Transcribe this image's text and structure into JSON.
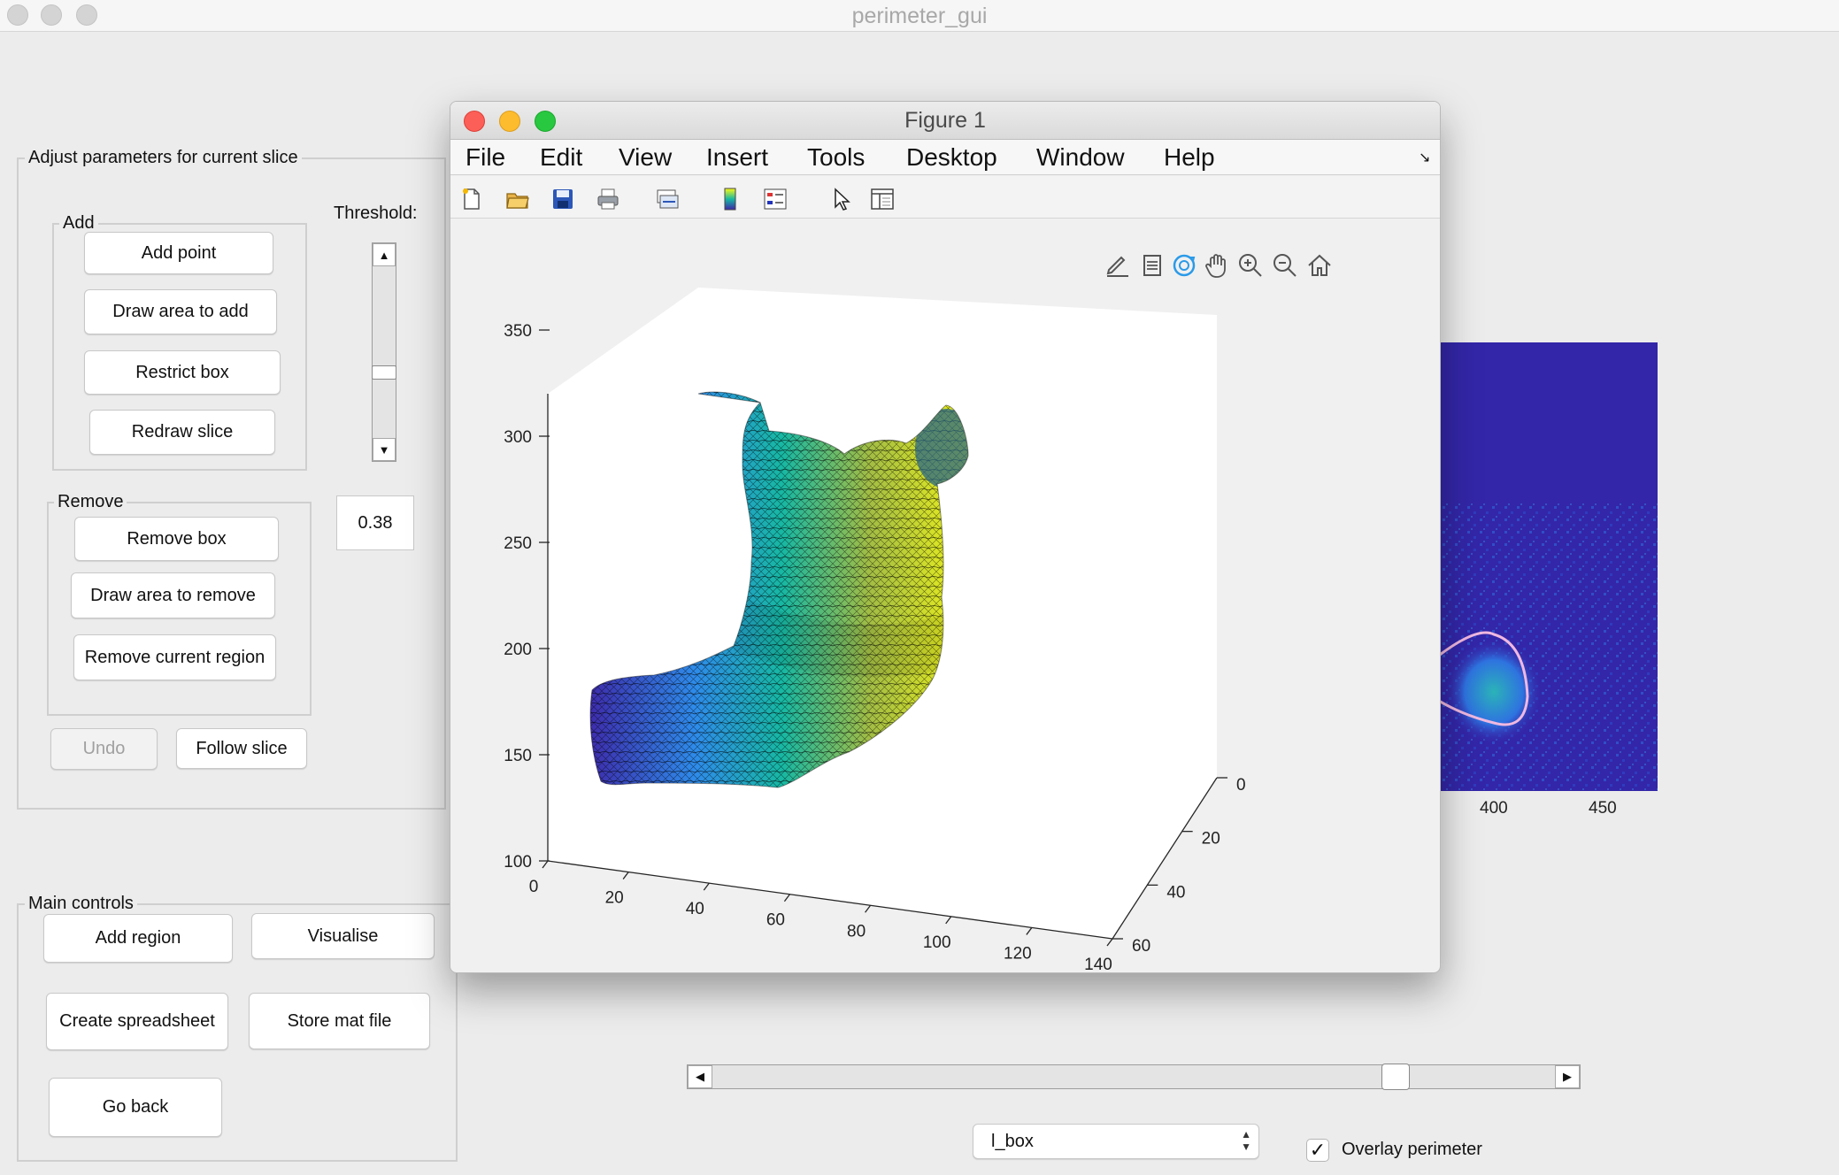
{
  "app": {
    "title": "perimeter_gui"
  },
  "adjust_panel": {
    "title": "Adjust parameters for current slice",
    "add_group": {
      "title": "Add",
      "add_point": "Add point",
      "draw_area_to_add": "Draw area to add",
      "restrict_box": "Restrict box",
      "redraw_slice": "Redraw slice"
    },
    "remove_group": {
      "title": "Remove",
      "remove_box": "Remove box",
      "draw_area_to_remove": "Draw area to remove",
      "remove_current_region": "Remove current region"
    },
    "undo": "Undo",
    "follow_slice": "Follow slice",
    "threshold_label": "Threshold:",
    "threshold_value": "0.38",
    "threshold_level": 0.38
  },
  "main_controls": {
    "title": "Main controls",
    "add_region": "Add region",
    "visualise": "Visualise",
    "create_spreadsheet": "Create spreadsheet",
    "store_mat_file": "Store mat file",
    "go_back": "Go back"
  },
  "background_axis": {
    "x_ticks": [
      "400",
      "450"
    ]
  },
  "slice_slider": {
    "value_fraction": 0.82
  },
  "variable_select": {
    "selected": "l_box"
  },
  "overlay": {
    "label": "Overlay perimeter",
    "checked": true,
    "check_glyph": "✓"
  },
  "figure": {
    "title": "Figure 1",
    "menu": [
      "File",
      "Edit",
      "View",
      "Insert",
      "Tools",
      "Desktop",
      "Window",
      "Help"
    ],
    "toolbar_icons": [
      "new-figure-icon",
      "open-file-icon",
      "save-icon",
      "print-icon",
      "link-plot-icon",
      "colorbar-icon",
      "legend-icon",
      "pointer-icon",
      "property-editor-icon"
    ],
    "axes_toolbar_icons": [
      "brush-icon",
      "data-tips-icon",
      "rotate-3d-icon",
      "pan-icon",
      "zoom-in-icon",
      "zoom-out-icon",
      "home-icon"
    ]
  },
  "chart_data": {
    "type": "surface3d",
    "colormap": "parula",
    "colormap_colors": [
      "#3e26a8",
      "#2e8bea",
      "#17b8a3",
      "#a3bd44",
      "#f9fa14"
    ],
    "x_ticks": [
      0,
      20,
      40,
      60,
      80,
      100,
      120,
      140
    ],
    "y_ticks": [
      0,
      20,
      40,
      60
    ],
    "z_ticks": [
      100,
      150,
      200,
      250,
      300,
      350
    ],
    "xlim": [
      0,
      140
    ],
    "ylim": [
      0,
      60
    ],
    "zlim": [
      100,
      350
    ],
    "grid": false
  }
}
